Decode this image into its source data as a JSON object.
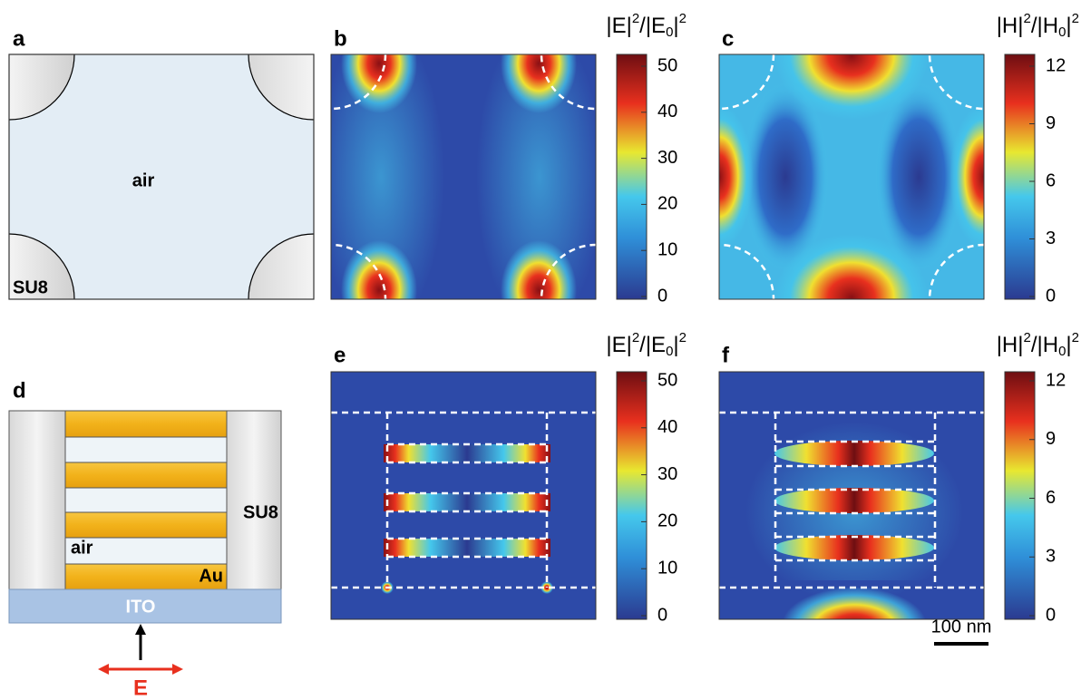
{
  "panel_labels": [
    "a",
    "b",
    "c",
    "d",
    "e",
    "f"
  ],
  "a": {
    "air": "air",
    "su8": "SU8"
  },
  "b_colorbar": {
    "label": [
      "|E|",
      "2",
      "/|E",
      "0",
      "|",
      "2"
    ],
    "ticks": [
      0,
      10,
      20,
      30,
      40,
      50
    ]
  },
  "c_colorbar": {
    "label": [
      "|H|",
      "2",
      "/|H",
      "0",
      "|",
      "2"
    ],
    "ticks": [
      0,
      3,
      6,
      9,
      12
    ]
  },
  "d": {
    "su8": "SU8",
    "air": "air",
    "au": "Au",
    "ito": "ITO",
    "polarization": "E"
  },
  "e_colorbar": {
    "label": [
      "|E|",
      "2",
      "/|E",
      "0",
      "|",
      "2"
    ],
    "ticks": [
      0,
      10,
      20,
      30,
      40,
      50
    ]
  },
  "f_colorbar": {
    "label": [
      "|H|",
      "2",
      "/|H",
      "0",
      "|",
      "2"
    ],
    "ticks": [
      0,
      3,
      6,
      9,
      12
    ]
  },
  "scale_bar": "100 nm"
}
